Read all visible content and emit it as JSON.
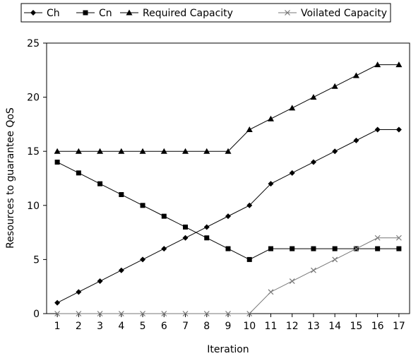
{
  "chart_data": {
    "type": "line",
    "title": "",
    "xlabel": "Iteration",
    "ylabel": "Resources to guarantee QoS",
    "x": [
      1,
      2,
      3,
      4,
      5,
      6,
      7,
      8,
      9,
      10,
      11,
      12,
      13,
      14,
      15,
      16,
      17
    ],
    "xlim": [
      0.5,
      17.5
    ],
    "ylim": [
      0,
      25
    ],
    "yticks": [
      0,
      5,
      10,
      15,
      20,
      25
    ],
    "grid": false,
    "legend_position": "top",
    "series": [
      {
        "name": "Ch",
        "marker": "diamond",
        "color": "#000000",
        "dashed": false,
        "values": [
          1,
          2,
          3,
          4,
          5,
          6,
          7,
          8,
          9,
          10,
          12,
          13,
          14,
          15,
          16,
          17,
          17
        ]
      },
      {
        "name": "Cn",
        "marker": "square",
        "color": "#000000",
        "dashed": false,
        "values": [
          14,
          13,
          12,
          11,
          10,
          9,
          8,
          7,
          6,
          5,
          6,
          6,
          6,
          6,
          6,
          6,
          6
        ]
      },
      {
        "name": "Required Capacity",
        "marker": "triangle",
        "color": "#000000",
        "dashed": false,
        "values": [
          15,
          15,
          15,
          15,
          15,
          15,
          15,
          15,
          15,
          17,
          18,
          19,
          20,
          21,
          22,
          23,
          23
        ]
      },
      {
        "name": "Voilated Capacity",
        "marker": "x",
        "color": "#777777",
        "dashed": false,
        "values": [
          0,
          0,
          0,
          0,
          0,
          0,
          0,
          0,
          0,
          0,
          2,
          3,
          4,
          5,
          6,
          7,
          7
        ]
      }
    ]
  }
}
